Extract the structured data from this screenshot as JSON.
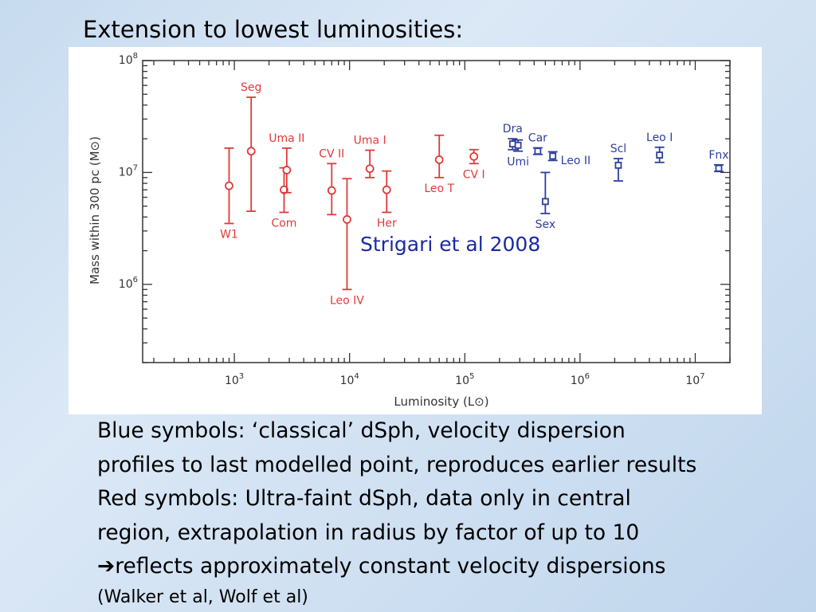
{
  "slide": {
    "title": "Extension to lowest luminosities:",
    "body_lines": [
      "Blue symbols: ‘classical’ dSph, velocity dispersion",
      "profiles to last modelled point, reproduces earlier results",
      "Red symbols: Ultra-faint dSph, data only in central",
      "region, extrapolation in radius by factor of up to 10",
      "reflects approximately constant velocity dispersions"
    ],
    "arrow_glyph": "➔",
    "citation": "(Walker et al, Wolf et al)"
  },
  "colors": {
    "red": "#e03a3a",
    "blue": "#2e3f9e",
    "annotation": "#1a2aa0",
    "axis": "#333333"
  },
  "chart_data": {
    "type": "scatter",
    "xscale": "log",
    "yscale": "log",
    "xlim": [
      160,
      20000000
    ],
    "ylim": [
      200000,
      100000000
    ],
    "xlabel": "Luminosity (L",
    "xlabel_end": ")",
    "ylabel": "Mass within 300 pc (M",
    "ylabel_end": ")",
    "x_ticks": [
      {
        "b": "10",
        "e": "3"
      },
      {
        "b": "10",
        "e": "4"
      },
      {
        "b": "10",
        "e": "5"
      },
      {
        "b": "10",
        "e": "6"
      },
      {
        "b": "10",
        "e": "7"
      }
    ],
    "x_tick_values": [
      1000,
      10000,
      100000,
      1000000,
      10000000
    ],
    "y_ticks": [
      {
        "b": "10",
        "e": "6"
      },
      {
        "b": "10",
        "e": "7"
      },
      {
        "b": "10",
        "e": "8"
      }
    ],
    "y_tick_values": [
      1000000,
      10000000,
      100000000
    ],
    "annotation": "Strigari et al 2008",
    "series": [
      {
        "name": "Ultra-faint dSph",
        "color": "red",
        "marker": "circle",
        "points": [
          {
            "label": "W1",
            "x": 900,
            "y": 7600000,
            "ylo": 3500000,
            "yhi": 16500000,
            "label_pos": "below"
          },
          {
            "label": "Seg",
            "x": 1400,
            "y": 15500000,
            "ylo": 4500000,
            "yhi": 47000000,
            "label_pos": "above"
          },
          {
            "label": "Com",
            "x": 2700,
            "y": 7000000,
            "ylo": 4400000,
            "yhi": 11000000,
            "label_pos": "below"
          },
          {
            "label": "Uma II",
            "x": 2850,
            "y": 10500000,
            "ylo": 6600000,
            "yhi": 16500000,
            "label_pos": "above"
          },
          {
            "label": "CV II",
            "x": 7000,
            "y": 6900000,
            "ylo": 4200000,
            "yhi": 12000000,
            "label_pos": "above"
          },
          {
            "label": "Leo IV",
            "x": 9500,
            "y": 3800000,
            "ylo": 900000,
            "yhi": 8800000,
            "label_pos": "below"
          },
          {
            "label": "Uma I",
            "x": 15000,
            "y": 10800000,
            "ylo": 9000000,
            "yhi": 15800000,
            "label_pos": "above"
          },
          {
            "label": "Her",
            "x": 21000,
            "y": 7000000,
            "ylo": 4400000,
            "yhi": 10300000,
            "label_pos": "below"
          },
          {
            "label": "Leo T",
            "x": 60000,
            "y": 13000000,
            "ylo": 9000000,
            "yhi": 21500000,
            "label_pos": "below"
          },
          {
            "label": "CV I",
            "x": 120000,
            "y": 13900000,
            "ylo": 12000000,
            "yhi": 16000000,
            "label_pos": "below"
          }
        ]
      },
      {
        "name": "Classical dSph",
        "color": "blue",
        "marker": "square",
        "points": [
          {
            "label": "Dra",
            "x": 260000,
            "y": 18000000,
            "ylo": 16000000,
            "yhi": 20000000,
            "label_pos": "above"
          },
          {
            "label": "Umi",
            "x": 290000,
            "y": 17500000,
            "ylo": 15500000,
            "yhi": 19500000,
            "label_pos": "below"
          },
          {
            "label": "Car",
            "x": 430000,
            "y": 15500000,
            "ylo": 14500000,
            "yhi": 16600000,
            "label_pos": "above"
          },
          {
            "label": "Sex",
            "x": 500000,
            "y": 5500000,
            "ylo": 4300000,
            "yhi": 10000000,
            "label_pos": "below"
          },
          {
            "label": "Leo II",
            "x": 580000,
            "y": 14000000,
            "ylo": 12800000,
            "yhi": 15300000,
            "label_pos": "right"
          },
          {
            "label": "Scl",
            "x": 2150000,
            "y": 11600000,
            "ylo": 8400000,
            "yhi": 13300000,
            "label_pos": "above"
          },
          {
            "label": "Leo I",
            "x": 4900000,
            "y": 14300000,
            "ylo": 12300000,
            "yhi": 16800000,
            "label_pos": "above"
          },
          {
            "label": "Fnx",
            "x": 16000000,
            "y": 10900000,
            "ylo": 10200000,
            "yhi": 11700000,
            "label_pos": "above"
          }
        ]
      }
    ]
  }
}
